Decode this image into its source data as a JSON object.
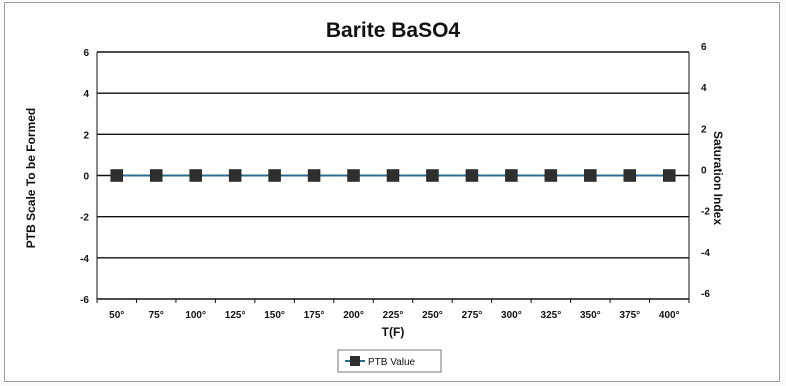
{
  "chart_data": {
    "type": "line",
    "title": "Barite BaSO4",
    "xlabel": "T(F)",
    "ylabel": "PTB Scale To be Formed",
    "ylabel_right": "Saturation Index",
    "categories": [
      "50°",
      "75°",
      "100°",
      "125°",
      "150°",
      "175°",
      "200°",
      "225°",
      "250°",
      "275°",
      "300°",
      "325°",
      "350°",
      "375°",
      "400°"
    ],
    "series": [
      {
        "name": "PTB Value",
        "values": [
          0,
          0,
          0,
          0,
          0,
          0,
          0,
          0,
          0,
          0,
          0,
          0,
          0,
          0,
          0
        ]
      }
    ],
    "ylim": [
      -6,
      6
    ],
    "yticks": [
      6,
      4,
      2,
      0,
      -2,
      -4,
      -6
    ],
    "y2lim": [
      -6,
      6
    ],
    "y2ticks": [
      6,
      4,
      2,
      0,
      -2,
      -4,
      -6
    ],
    "grid": true,
    "legend_position": "bottom-center",
    "colors": {
      "line": "#2a6e8f",
      "marker": "#2f2f2f",
      "grid": "#111111"
    }
  }
}
